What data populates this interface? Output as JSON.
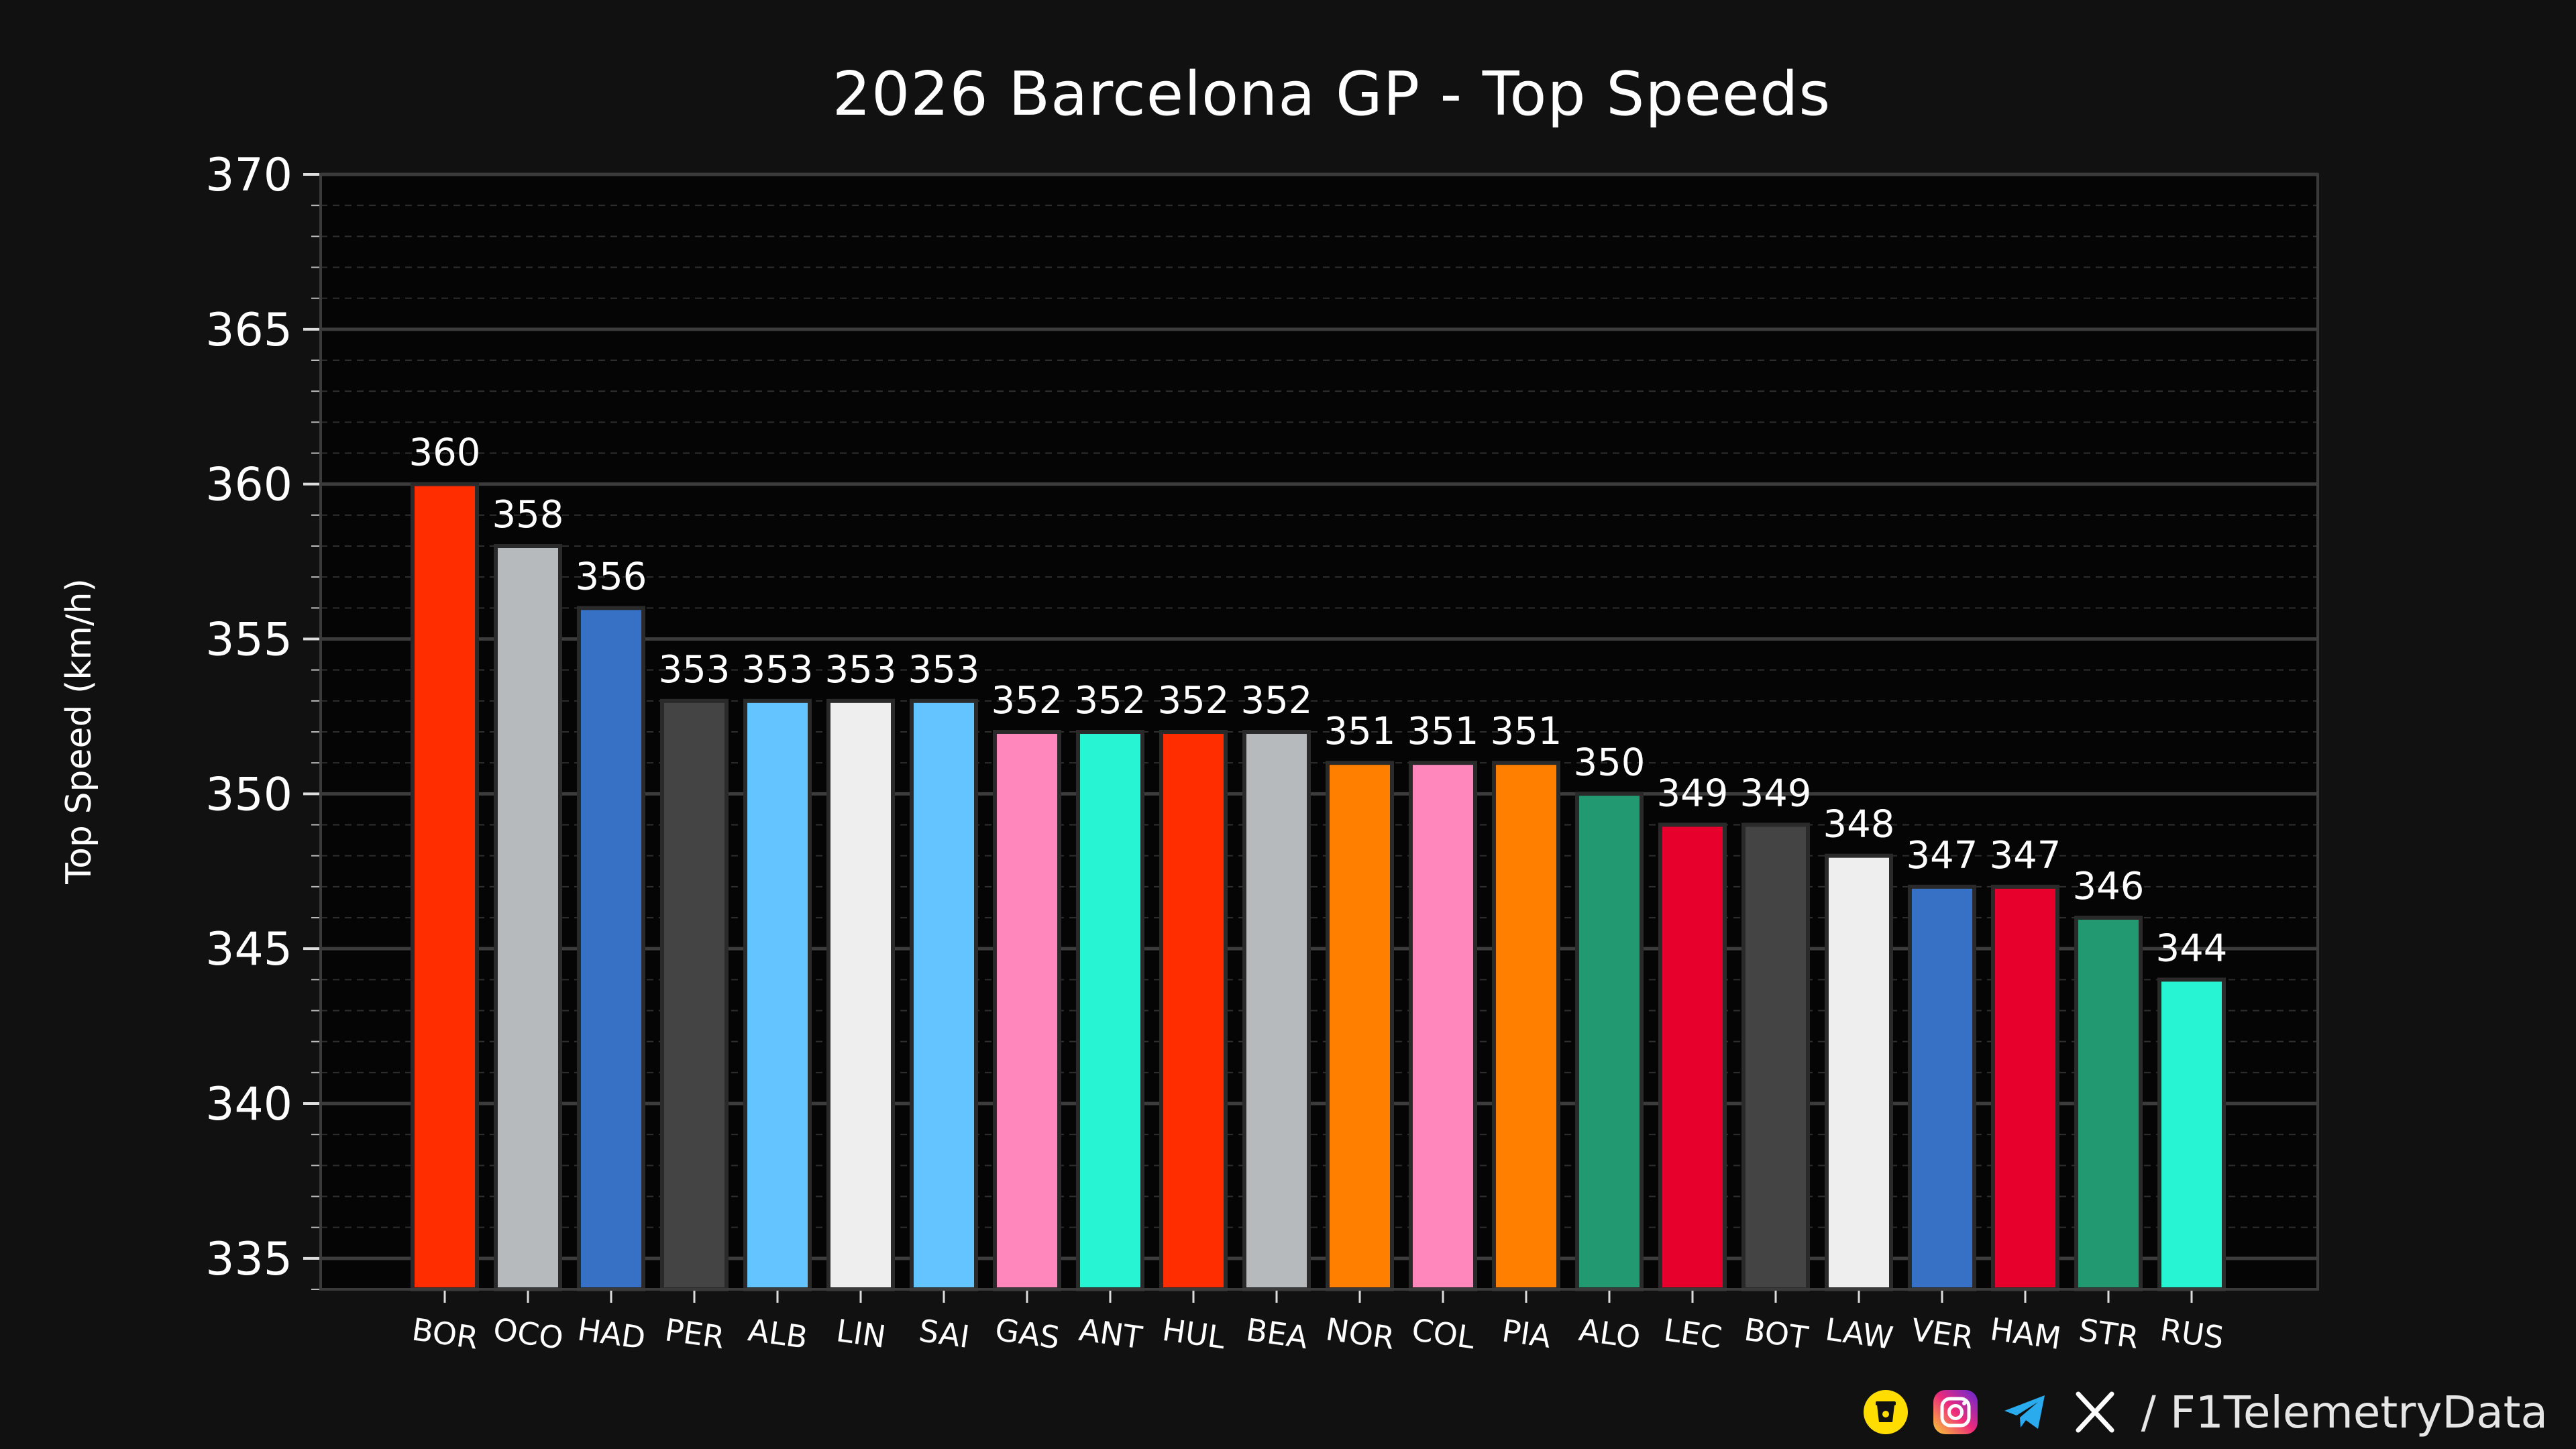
{
  "footer": {
    "handle": "/ F1TelemetryData",
    "icons": [
      "coffee-cup-icon",
      "instagram-icon",
      "telegram-icon",
      "x-logo-icon"
    ]
  },
  "chart_data": {
    "type": "bar",
    "title": "2026 Barcelona GP - Top Speeds",
    "xlabel": "",
    "ylabel": "Top Speed (km/h)",
    "ylim": [
      334,
      370
    ],
    "yticks": [
      335,
      340,
      345,
      350,
      355,
      360,
      365,
      370
    ],
    "grid": true,
    "background": "#050505",
    "categories": [
      "BOR",
      "OCO",
      "HAD",
      "PER",
      "ALB",
      "LIN",
      "SAI",
      "GAS",
      "ANT",
      "HUL",
      "BEA",
      "NOR",
      "COL",
      "PIA",
      "ALO",
      "LEC",
      "BOT",
      "LAW",
      "VER",
      "HAM",
      "STR",
      "RUS"
    ],
    "values": [
      360,
      358,
      356,
      353,
      353,
      353,
      353,
      352,
      352,
      352,
      352,
      351,
      351,
      351,
      350,
      349,
      349,
      348,
      347,
      347,
      346,
      344
    ],
    "colors": [
      "#FF2D00",
      "#B6BABD",
      "#3671C6",
      "#444444",
      "#64C4FF",
      "#EEEEEE",
      "#64C4FF",
      "#FF87BC",
      "#27F4D2",
      "#FF2D00",
      "#B6BABD",
      "#FF8000",
      "#FF87BC",
      "#FF8000",
      "#229971",
      "#E8002D",
      "#444444",
      "#EEEEEE",
      "#3671C6",
      "#E8002D",
      "#229971",
      "#27F4D2"
    ]
  }
}
